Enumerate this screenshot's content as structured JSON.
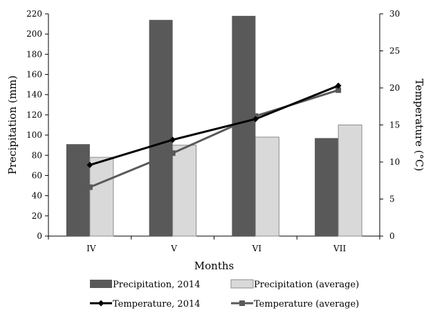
{
  "chart_data": {
    "type": "bar",
    "categories": [
      "IV",
      "V",
      "VI",
      "VII"
    ],
    "xlabel": "Months",
    "ylabel": "Precipitation (mm)",
    "y2label": "Temperature (°C)",
    "ylim": [
      0,
      220
    ],
    "y2lim": [
      0,
      30
    ],
    "yticks": [
      0,
      20,
      40,
      60,
      80,
      100,
      120,
      140,
      160,
      180,
      200,
      220
    ],
    "y2ticks": [
      0,
      5,
      10,
      15,
      20,
      25,
      30
    ],
    "grid": false,
    "legend": "bottom",
    "series": [
      {
        "name": "Precipitation, 2014",
        "type": "bar",
        "axis": "left",
        "color": "#595959",
        "values": [
          91,
          214,
          218,
          97
        ]
      },
      {
        "name": "Precipitation (average)",
        "type": "bar",
        "axis": "left",
        "color": "#d9d9d9",
        "values": [
          78,
          90,
          98,
          110
        ]
      },
      {
        "name": "Temperature, 2014",
        "type": "line",
        "axis": "right",
        "color": "#000000",
        "marker": "diamond",
        "values": [
          9.6,
          13.0,
          15.8,
          20.3
        ]
      },
      {
        "name": "Temperature (average)",
        "type": "line",
        "axis": "right",
        "color": "#595959",
        "marker": "square",
        "values": [
          6.6,
          11.2,
          16.2,
          19.7
        ]
      }
    ]
  }
}
